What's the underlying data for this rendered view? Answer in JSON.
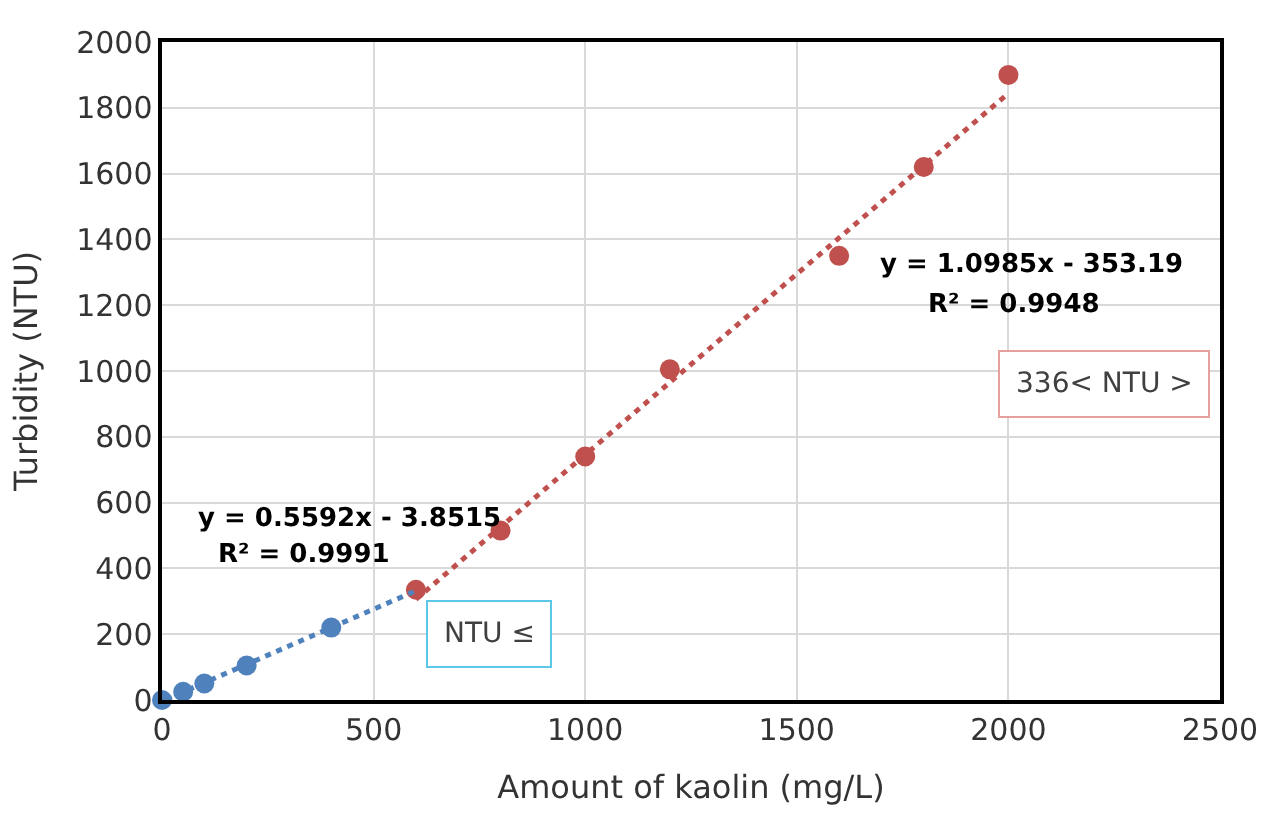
{
  "chart_data": {
    "type": "scatter",
    "xlabel": "Amount of kaolin (mg/L)",
    "ylabel": "Turbidity (NTU)",
    "series": [
      {
        "color": "#4f81bd",
        "x": [
          0,
          50,
          100,
          200,
          400
        ],
        "values": [
          0,
          25,
          50,
          105,
          220
        ]
      },
      {
        "color": "#c0504d",
        "x": [
          600,
          800,
          1000,
          1200,
          1600,
          1800,
          2000
        ],
        "values": [
          335,
          515,
          740,
          1005,
          1350,
          1620,
          1900
        ]
      },
      {
        "type": "line",
        "line_style": "dotted",
        "marker": "none",
        "color": "#4f81bd",
        "x": [
          10,
          600
        ],
        "values": [
          2,
          332
        ]
      },
      {
        "type": "line",
        "line_style": "dotted",
        "marker": "none",
        "color": "#c0504d",
        "x": [
          600,
          2000
        ],
        "values": [
          306,
          1844
        ]
      }
    ],
    "annotations": [
      "y = 0.5592x - 3.8515",
      "R² = 0.9991",
      "NTU ≤",
      "y = 1.0985x - 353.19",
      "R² = 0.9948",
      "336< NTU >"
    ],
    "xlim": [
      0,
      2500
    ],
    "xticks": [
      0,
      500,
      1000,
      1500,
      2000,
      2500
    ],
    "ylim": [
      0,
      2000
    ],
    "yticks": [
      0,
      200,
      400,
      600,
      800,
      1000,
      1200,
      1400,
      1600,
      1800,
      2000
    ],
    "grid": true,
    "marker": "circle"
  }
}
